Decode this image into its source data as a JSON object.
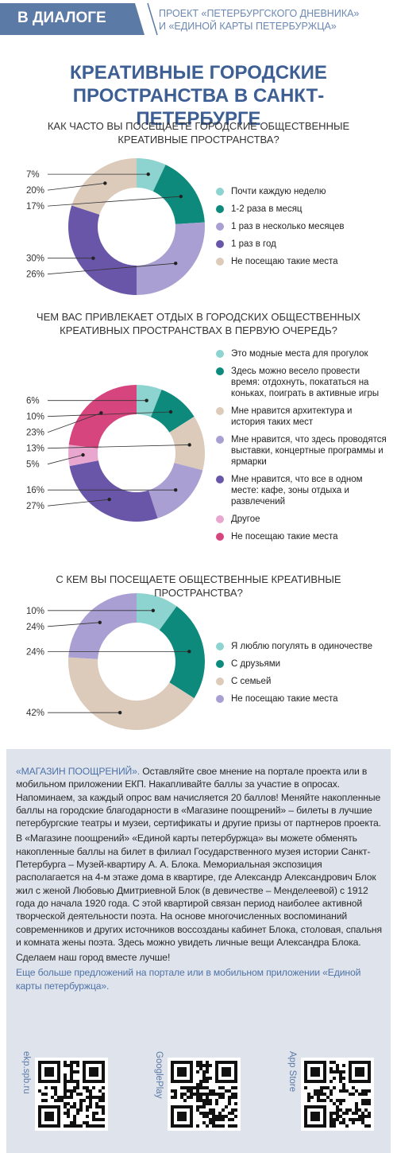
{
  "header": {
    "badge": "В ДИАЛОГЕ",
    "project": [
      "ПРОЕКТ «ПЕТЕРБУРГСКОГО ДНЕВНИКА»",
      "И «ЕДИНОЙ КАРТЫ ПЕТЕРБУРЖЦА»"
    ]
  },
  "title": "КРЕАТИВНЫЕ ГОРОДСКИЕ ПРОСТРАНСТВА В САНКТ-ПЕТЕРБУРГЕ",
  "chart_data": [
    {
      "type": "donut",
      "title": "КАК ЧАСТО ВЫ ПОСЕЩАЕТЕ ГОРОДСКИЕ ОБЩЕСТВЕННЫЕ КРЕАТИВНЫЕ ПРОСТРАНСТВА?",
      "categories": [
        "Почти каждую неделю",
        "1-2 раза в месяц",
        "1 раз в несколько месяцев",
        "1 раз в год",
        "Не посещаю такие места"
      ],
      "values": [
        7,
        17,
        26,
        30,
        20
      ],
      "value_labels": [
        "7%",
        "17%",
        "26%",
        "30%",
        "20%"
      ],
      "colors": [
        "#8dd3cf",
        "#0e8a7c",
        "#a99fd2",
        "#6a56a8",
        "#dccbbb"
      ]
    },
    {
      "type": "donut",
      "title": "ЧЕМ ВАС ПРИВЛЕКАЕТ ОТДЫХ В ГОРОДСКИХ ОБЩЕСТВЕННЫХ КРЕАТИВНЫХ ПРОСТРАНСТВАХ В ПЕРВУЮ ОЧЕРЕДЬ?",
      "categories": [
        "Это модные места для прогулок",
        "Здесь можно весело провести время: отдохнуть, покататься на коньках, поиграть в активные игры",
        "Мне нравится архитектура и история таких мест",
        "Мне нравится, что здесь проводятся выставки, концертные программы и ярмарки",
        "Мне нравится, что все в одном месте: кафе, зоны отдыха и развлечений",
        "Другое",
        "Не посещаю такие места"
      ],
      "values": [
        6,
        10,
        13,
        16,
        27,
        5,
        23
      ],
      "value_labels": [
        "6%",
        "10%",
        "13%",
        "16%",
        "27%",
        "5%",
        "23%"
      ],
      "colors": [
        "#8dd3cf",
        "#0e8a7c",
        "#dccbbb",
        "#a99fd2",
        "#6a56a8",
        "#e9a7d0",
        "#d6457e"
      ]
    },
    {
      "type": "donut",
      "title": "С КЕМ ВЫ ПОСЕЩАЕТЕ ОБЩЕСТВЕННЫЕ КРЕАТИВНЫЕ ПРОСТРАНСТВА?",
      "categories": [
        "Я люблю погулять в одиночестве",
        "С друзьями",
        "С семьей",
        "Не посещаю такие места"
      ],
      "values": [
        10,
        24,
        42,
        24
      ],
      "value_labels": [
        "10%",
        "24%",
        "42%",
        "24%"
      ],
      "colors": [
        "#8dd3cf",
        "#0e8a7c",
        "#dccbbb",
        "#a99fd2"
      ]
    }
  ],
  "footer": {
    "lead": "«МАГАЗИН ПООЩРЕНИЙ».",
    "p1": "Оставляйте свое мнение на портале проекта или в мобильном приложении ЕКП. Накапливайте баллы за участие в опросах. Напоминаем, за каждый опрос вам начисляется 20 баллов! Меняйте накопленные баллы на городские благодарности в «Магазине поощрений» – билеты в лучшие петербургские театры и музеи, сертификаты и другие призы от партнеров проекта.",
    "p2": "В «Магазине поощрений» «Единой карты петербуржца» вы можете обменять накопленные баллы на билет в филиал Государственного музея истории Санкт-Петербурга – Музей-квартиру А. А. Блока. Мемориальная экспозиция располагается на 4-м этаже дома в квартире, где Александр Александрович Блок жил с женой Любовью Дмитриевной Блок (в девичестве – Менделеевой) с 1912 года до начала 1920 года. С этой квартирой связан период наиболее активной творческой деятельности поэта. На основе многочисленных воспоминаний современников и других источников воссозданы кабинет Блока, столовая, спальня и комната жены поэта. Здесь можно увидеть личные вещи Александра Блока.",
    "p3": "Сделаем наш город вместе лучше!",
    "more": "Еще больше предложений на портале или в мобильном приложении «Единой карты петербуржца».",
    "qr": [
      "ekp.spb.ru",
      "GooglePlay",
      "App Store"
    ]
  }
}
